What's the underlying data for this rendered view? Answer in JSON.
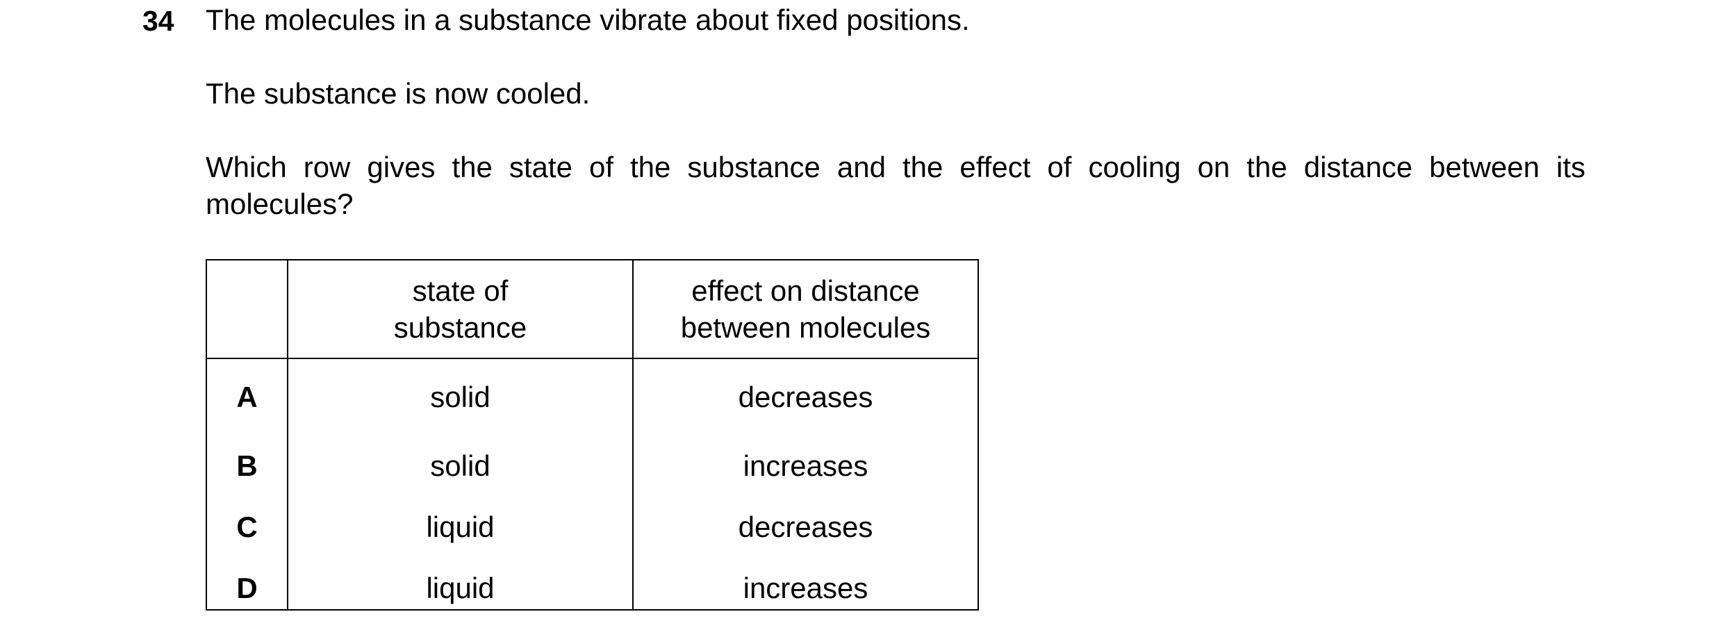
{
  "question": {
    "number": "34",
    "line1": "The molecules in a substance vibrate about fixed positions.",
    "line2": "The substance is now cooled.",
    "line3": "Which row gives the state of the substance and the effect of cooling on the distance between its molecules?"
  },
  "table": {
    "headers": {
      "letter": "",
      "state": [
        "state of",
        "substance"
      ],
      "effect": [
        "effect on distance",
        "between molecules"
      ]
    },
    "rows": [
      {
        "letter": "A",
        "state": "solid",
        "effect": "decreases"
      },
      {
        "letter": "B",
        "state": "solid",
        "effect": "increases"
      },
      {
        "letter": "C",
        "state": "liquid",
        "effect": "decreases"
      },
      {
        "letter": "D",
        "state": "liquid",
        "effect": "increases"
      }
    ]
  }
}
